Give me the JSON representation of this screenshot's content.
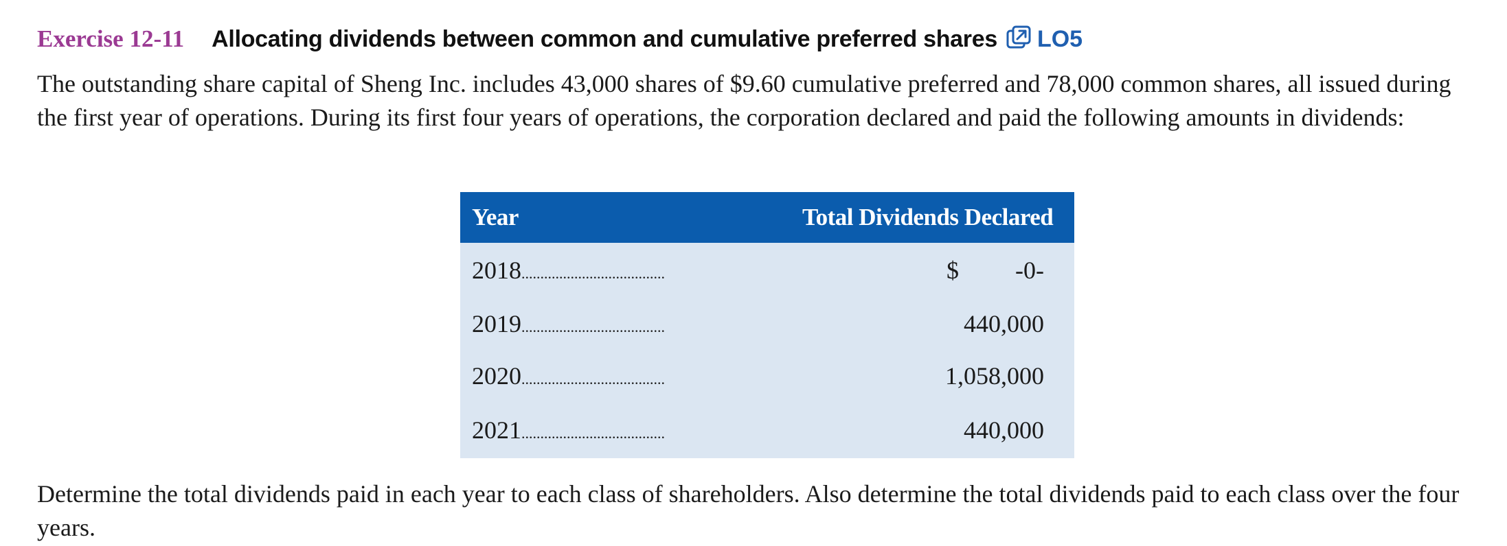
{
  "exercise": {
    "number": "Exercise 12-11",
    "title": "Allocating dividends between common and cumulative preferred shares",
    "learning_objective": "LO5",
    "link_icon": "external-link-icon"
  },
  "intro_text": "The outstanding share capital of Sheng Inc. includes 43,000 shares of $9.60 cumulative preferred and 78,000 common shares, all issued during the first year of operations. During its first four years of operations, the corporation declared and paid the following amounts in dividends:",
  "table": {
    "headers": {
      "year": "Year",
      "total": "Total Dividends Declared"
    },
    "leader": "......................................",
    "currency_symbol": "$",
    "rows": [
      {
        "year": "2018",
        "amount": "-0-"
      },
      {
        "year": "2019",
        "amount": "440,000"
      },
      {
        "year": "2020",
        "amount": "1,058,000"
      },
      {
        "year": "2021",
        "amount": "440,000"
      }
    ],
    "colors": {
      "header_bg": "#0b5cad",
      "row_bg": "#dbe6f2"
    }
  },
  "closing_text": "Determine the total dividends paid in each year to each class of shareholders. Also determine the total dividends paid to each class over the four years.",
  "colors": {
    "exercise_number": "#9b3a93",
    "lo_link": "#1f5fb0"
  }
}
